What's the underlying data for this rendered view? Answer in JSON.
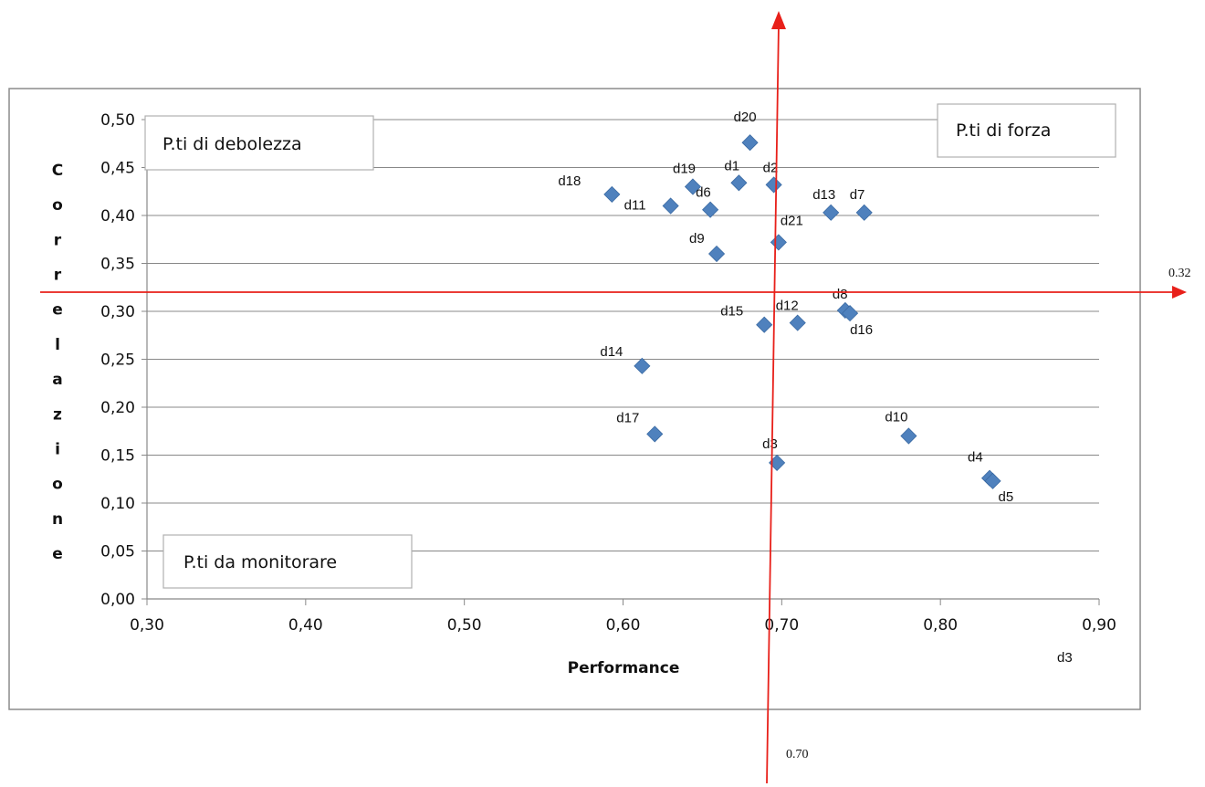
{
  "chart_data": {
    "type": "scatter",
    "xlabel": "Performance",
    "ylabel": "Correlazione",
    "xlim": [
      0.3,
      0.9
    ],
    "ylim": [
      0.0,
      0.5
    ],
    "x_ticks": [
      "0,30",
      "0,40",
      "0,50",
      "0,60",
      "0,70",
      "0,80",
      "0,90"
    ],
    "y_ticks": [
      "0,00",
      "0,05",
      "0,10",
      "0,15",
      "0,20",
      "0,25",
      "0,30",
      "0,35",
      "0,40",
      "0,45",
      "0,50"
    ],
    "grid": "horizontal",
    "marker": "diamond",
    "marker_color": "#4F81BD",
    "points": [
      {
        "label": "d1",
        "x": 0.673,
        "y": 0.434
      },
      {
        "label": "d2",
        "x": 0.695,
        "y": 0.432
      },
      {
        "label": "d3",
        "x": 0.697,
        "y": 0.142
      },
      {
        "label": "d4",
        "x": 0.831,
        "y": 0.126
      },
      {
        "label": "d5",
        "x": 0.833,
        "y": 0.123
      },
      {
        "label": "d6",
        "x": 0.655,
        "y": 0.406
      },
      {
        "label": "d7",
        "x": 0.752,
        "y": 0.403
      },
      {
        "label": "d8",
        "x": 0.74,
        "y": 0.301
      },
      {
        "label": "d9",
        "x": 0.659,
        "y": 0.36
      },
      {
        "label": "d10",
        "x": 0.78,
        "y": 0.17
      },
      {
        "label": "d11",
        "x": 0.63,
        "y": 0.41
      },
      {
        "label": "d12",
        "x": 0.71,
        "y": 0.288
      },
      {
        "label": "d13",
        "x": 0.731,
        "y": 0.403
      },
      {
        "label": "d14",
        "x": 0.612,
        "y": 0.243
      },
      {
        "label": "d15",
        "x": 0.689,
        "y": 0.286
      },
      {
        "label": "d16",
        "x": 0.743,
        "y": 0.298
      },
      {
        "label": "d17",
        "x": 0.62,
        "y": 0.172
      },
      {
        "label": "d18",
        "x": 0.593,
        "y": 0.422
      },
      {
        "label": "d19",
        "x": 0.644,
        "y": 0.43
      },
      {
        "label": "d20",
        "x": 0.68,
        "y": 0.476
      },
      {
        "label": "d21",
        "x": 0.698,
        "y": 0.372
      }
    ],
    "reference_lines": {
      "color": "#E8201A",
      "horizontal": {
        "y": 0.32,
        "label": "0.32"
      },
      "vertical": {
        "x": 0.7,
        "label": "0.70"
      }
    },
    "annotations": {
      "top_left": "P.ti di debolezza",
      "top_right": "P.ti di forza",
      "bottom_left": "P.ti da monitorare",
      "stray_label": "d3"
    }
  }
}
